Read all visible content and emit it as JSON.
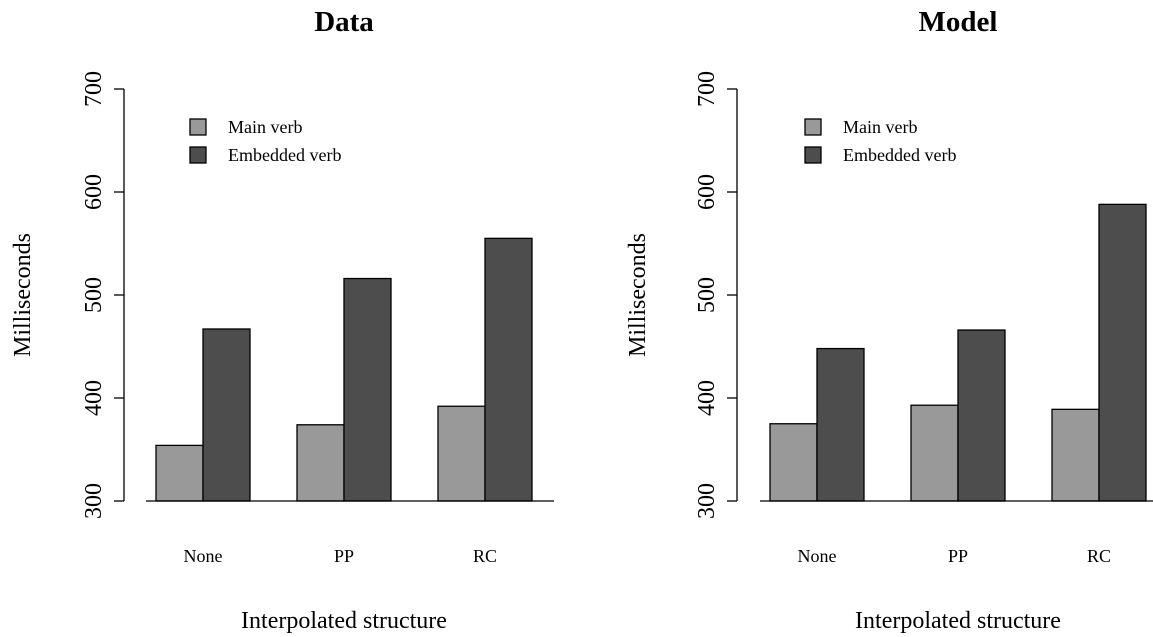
{
  "chart_data": [
    {
      "type": "bar",
      "title": "Data",
      "xlabel": "Interpolated structure",
      "ylabel": "Milliseconds",
      "categories": [
        "None",
        "PP",
        "RC"
      ],
      "ylim": [
        300,
        700
      ],
      "yticks": [
        "300",
        "400",
        "500",
        "600",
        "700"
      ],
      "legend_position": "top-left",
      "grid": false,
      "series": [
        {
          "name": "Main verb",
          "color": "#999999",
          "values": [
            354,
            374,
            392
          ]
        },
        {
          "name": "Embedded verb",
          "color": "#4d4d4d",
          "values": [
            467,
            516,
            555
          ]
        }
      ]
    },
    {
      "type": "bar",
      "title": "Model",
      "xlabel": "Interpolated structure",
      "ylabel": "Milliseconds",
      "categories": [
        "None",
        "PP",
        "RC"
      ],
      "ylim": [
        300,
        700
      ],
      "yticks": [
        "300",
        "400",
        "500",
        "600",
        "700"
      ],
      "legend_position": "top-left",
      "grid": false,
      "series": [
        {
          "name": "Main verb",
          "color": "#999999",
          "values": [
            375,
            393,
            389
          ]
        },
        {
          "name": "Embedded verb",
          "color": "#4d4d4d",
          "values": [
            448,
            466,
            588
          ]
        }
      ]
    }
  ]
}
